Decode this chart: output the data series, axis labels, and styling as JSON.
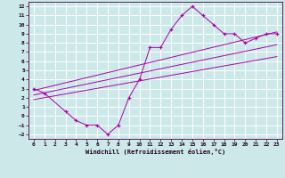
{
  "xlabel": "Windchill (Refroidissement éolien,°C)",
  "bg_color": "#cce8e8",
  "grid_color": "#ffffff",
  "line_color": "#aa00aa",
  "xlim": [
    -0.5,
    23.5
  ],
  "ylim": [
    -2.5,
    12.5
  ],
  "xticks": [
    0,
    1,
    2,
    3,
    4,
    5,
    6,
    7,
    8,
    9,
    10,
    11,
    12,
    13,
    14,
    15,
    16,
    17,
    18,
    19,
    20,
    21,
    22,
    23
  ],
  "yticks": [
    -2,
    -1,
    0,
    1,
    2,
    3,
    4,
    5,
    6,
    7,
    8,
    9,
    10,
    11,
    12
  ],
  "data_x": [
    0,
    1,
    3,
    4,
    5,
    6,
    7,
    8,
    9,
    10,
    11,
    12,
    13,
    14,
    15,
    16,
    17,
    18,
    19,
    20,
    21,
    22,
    23
  ],
  "data_y": [
    3.0,
    2.5,
    0.5,
    -0.5,
    -1.0,
    -1.0,
    -2.0,
    -1.0,
    2.0,
    4.0,
    7.5,
    7.5,
    9.5,
    11.0,
    12.0,
    11.0,
    10.0,
    9.0,
    9.0,
    8.0,
    8.5,
    9.0,
    9.0
  ],
  "reg_lines": [
    {
      "x": [
        0,
        23
      ],
      "y": [
        1.8,
        6.5
      ]
    },
    {
      "x": [
        0,
        23
      ],
      "y": [
        2.3,
        7.8
      ]
    },
    {
      "x": [
        0,
        23
      ],
      "y": [
        2.8,
        9.2
      ]
    }
  ],
  "tick_fontsize": 4.5,
  "xlabel_fontsize": 5.0
}
